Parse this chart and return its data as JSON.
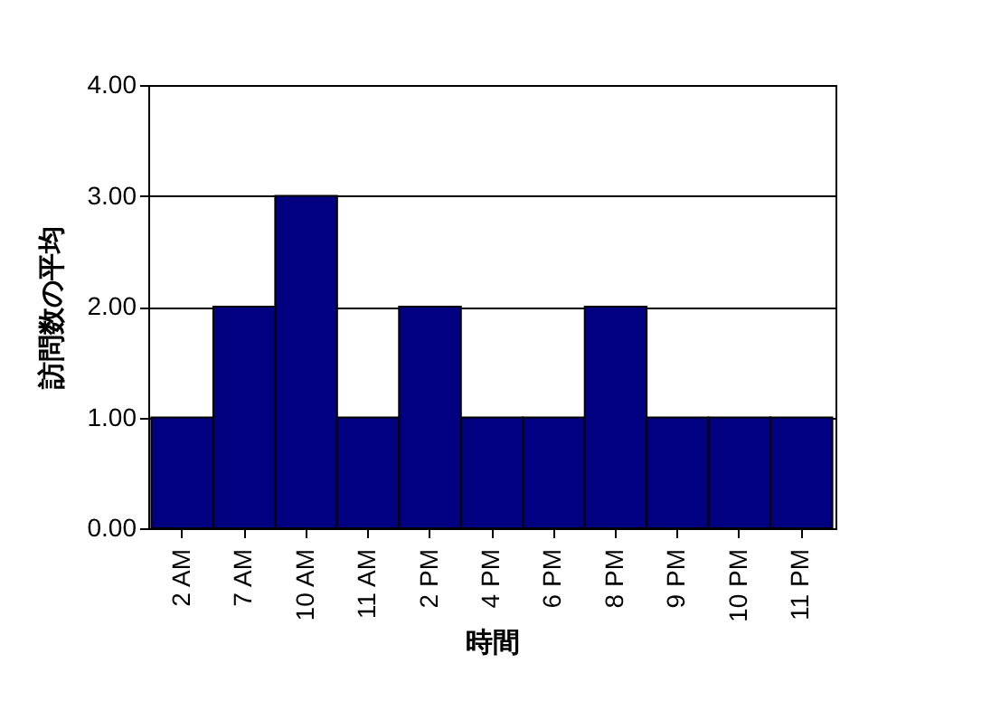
{
  "chart_data": {
    "type": "bar",
    "xlabel": "時間",
    "ylabel": "訪問数の平均",
    "categories": [
      "2 AM",
      "7 AM",
      "10 AM",
      "11 AM",
      "2 PM",
      "4 PM",
      "6 PM",
      "8 PM",
      "9 PM",
      "10 PM",
      "11 PM"
    ],
    "values": [
      1,
      2,
      3,
      1,
      2,
      1,
      1,
      2,
      1,
      1,
      1
    ],
    "color": "#000080",
    "ylim": [
      0,
      4
    ],
    "yticks": [
      {
        "value": 0,
        "label": "0.00"
      },
      {
        "value": 1,
        "label": "1.00"
      },
      {
        "value": 2,
        "label": "2.00"
      },
      {
        "value": 3,
        "label": "3.00"
      },
      {
        "value": 4,
        "label": "4.00"
      }
    ],
    "grid": "y"
  }
}
